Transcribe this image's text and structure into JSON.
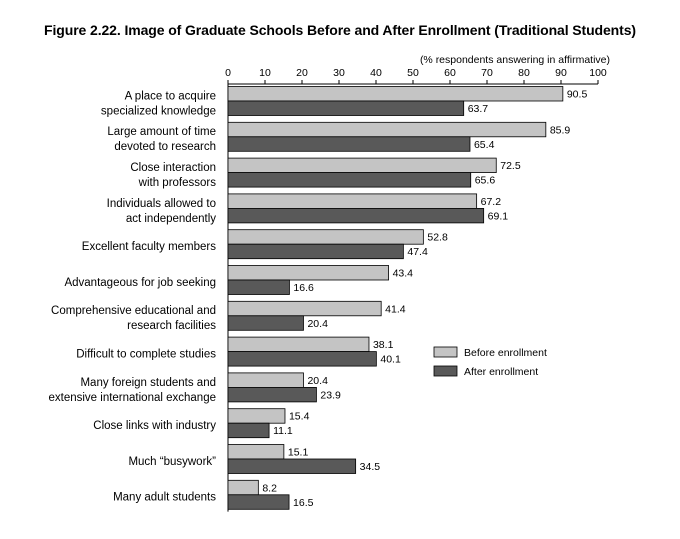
{
  "chart_data": {
    "type": "bar",
    "orientation": "horizontal",
    "title": "Figure 2.22. Image of Graduate Schools Before and After Enrollment (Traditional Students)",
    "axis_caption": "(% respondents answering in affirmative)",
    "xlim": [
      0,
      100
    ],
    "ticks": [
      0,
      10,
      20,
      30,
      40,
      50,
      60,
      70,
      80,
      90,
      100
    ],
    "categories": [
      [
        "A place to acquire",
        "specialized knowledge"
      ],
      [
        "Large amount of time",
        "devoted to research"
      ],
      [
        "Close interaction",
        "with professors"
      ],
      [
        "Individuals allowed to",
        "act independently"
      ],
      [
        "Excellent faculty members"
      ],
      [
        "Advantageous for job seeking"
      ],
      [
        "Comprehensive educational and",
        "research facilities"
      ],
      [
        "Difficult to complete studies"
      ],
      [
        "Many foreign students and",
        "extensive international exchange"
      ],
      [
        "Close links with industry"
      ],
      [
        "Much “busywork”"
      ],
      [
        "Many adult students"
      ]
    ],
    "series": [
      {
        "name": "Before enrollment",
        "color": "#c4c4c4",
        "values": [
          90.5,
          85.9,
          72.5,
          67.2,
          52.8,
          43.4,
          41.4,
          38.1,
          20.4,
          15.4,
          15.1,
          8.2
        ]
      },
      {
        "name": "After enrollment",
        "color": "#595959",
        "values": [
          63.7,
          65.4,
          65.6,
          69.1,
          47.4,
          16.6,
          20.4,
          40.1,
          23.9,
          11.1,
          34.5,
          16.5
        ]
      }
    ],
    "legend_position": "right",
    "grid": false
  }
}
